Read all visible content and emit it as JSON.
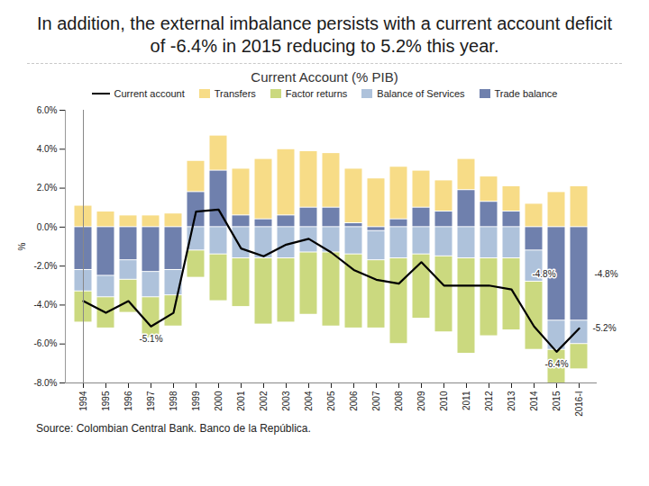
{
  "chart_data": {
    "type": "bar",
    "heading": "In addition, the external imbalance persists with a current account deficit of -6.4% in 2015 reducing to 5.2% this year.",
    "title": "Current Account (% PIB)",
    "y_label": "%",
    "source": "Source: Colombian Central Bank. Banco de la República.",
    "stacked": true,
    "legend": "top",
    "grid": false,
    "categories": [
      "1994",
      "1995",
      "1996",
      "1997",
      "1998",
      "1999",
      "2000",
      "2001",
      "2002",
      "2003",
      "2004",
      "2005",
      "2006",
      "2007",
      "2008",
      "2009",
      "2010",
      "2011",
      "2012",
      "2013",
      "2014",
      "2015",
      "2016-I"
    ],
    "ylim": [
      -8,
      6
    ],
    "yticks": [
      {
        "value": -8,
        "label": "-8.0%"
      },
      {
        "value": -6,
        "label": "-6.0%"
      },
      {
        "value": -4,
        "label": "-4.0%"
      },
      {
        "value": -2,
        "label": "-2.0%"
      },
      {
        "value": 0,
        "label": "0.0%"
      },
      {
        "value": 2,
        "label": "2.0%"
      },
      {
        "value": 4,
        "label": "4.0%"
      },
      {
        "value": 6,
        "label": "6.0%"
      }
    ],
    "series": [
      {
        "name": "Current account",
        "type": "line",
        "color": "#000000",
        "values": [
          -3.8,
          -4.4,
          -3.8,
          -5.1,
          -4.4,
          0.8,
          0.9,
          -1.1,
          -1.5,
          -0.9,
          -0.6,
          -1.3,
          -2.2,
          -2.7,
          -2.9,
          -1.8,
          -3.0,
          -3.0,
          -3.0,
          -3.2,
          -5.1,
          -6.4,
          -5.2
        ]
      },
      {
        "name": "Transfers",
        "type": "bar",
        "color": "#f7dc87",
        "values": [
          1.1,
          0.8,
          0.6,
          0.6,
          0.7,
          1.6,
          1.8,
          2.4,
          3.1,
          3.4,
          2.9,
          2.8,
          2.8,
          2.5,
          2.7,
          1.9,
          1.6,
          1.6,
          1.3,
          1.3,
          1.2,
          1.8,
          2.1
        ]
      },
      {
        "name": "Factor returns",
        "type": "bar",
        "color": "#cbd97f",
        "values": [
          -1.6,
          -1.6,
          -1.7,
          -2.1,
          -1.6,
          -1.4,
          -2.4,
          -2.5,
          -3.4,
          -3.3,
          -3.2,
          -3.8,
          -3.8,
          -3.5,
          -4.4,
          -3.3,
          -3.9,
          -4.9,
          -4.0,
          -3.7,
          -3.5,
          -1.9,
          -1.3
        ]
      },
      {
        "name": "Balance of Services",
        "type": "bar",
        "color": "#aec2db",
        "values": [
          -1.1,
          -1.1,
          -1.0,
          -1.3,
          -1.3,
          -1.2,
          -1.4,
          -1.6,
          -1.6,
          -1.6,
          -1.3,
          -1.3,
          -1.4,
          -1.5,
          -1.6,
          -1.4,
          -1.5,
          -1.6,
          -1.6,
          -1.6,
          -1.6,
          -1.5,
          -1.2
        ]
      },
      {
        "name": "Trade balance",
        "type": "bar",
        "color": "#6f80ad",
        "values": [
          -2.2,
          -2.5,
          -1.7,
          -2.3,
          -2.2,
          1.8,
          2.9,
          0.6,
          0.4,
          0.6,
          1.0,
          1.0,
          0.2,
          -0.2,
          0.4,
          1.0,
          0.8,
          1.9,
          1.3,
          0.8,
          -1.2,
          -4.8,
          -4.8
        ]
      }
    ],
    "annotations": [
      {
        "category": "1997",
        "value": -5.1,
        "label": "-5.1%",
        "series": "Current account"
      },
      {
        "category": "2015",
        "value": -4.8,
        "label": "-4.8%",
        "series": "Trade balance"
      },
      {
        "category": "2016-I",
        "value": -4.8,
        "label": "-4.8%",
        "series": "Trade balance"
      },
      {
        "category": "2015",
        "value": -6.4,
        "label": "-6.4%",
        "series": "Current account"
      },
      {
        "category": "2016-I",
        "value": -5.2,
        "label": "-5.2%",
        "series": "Current account"
      }
    ]
  }
}
